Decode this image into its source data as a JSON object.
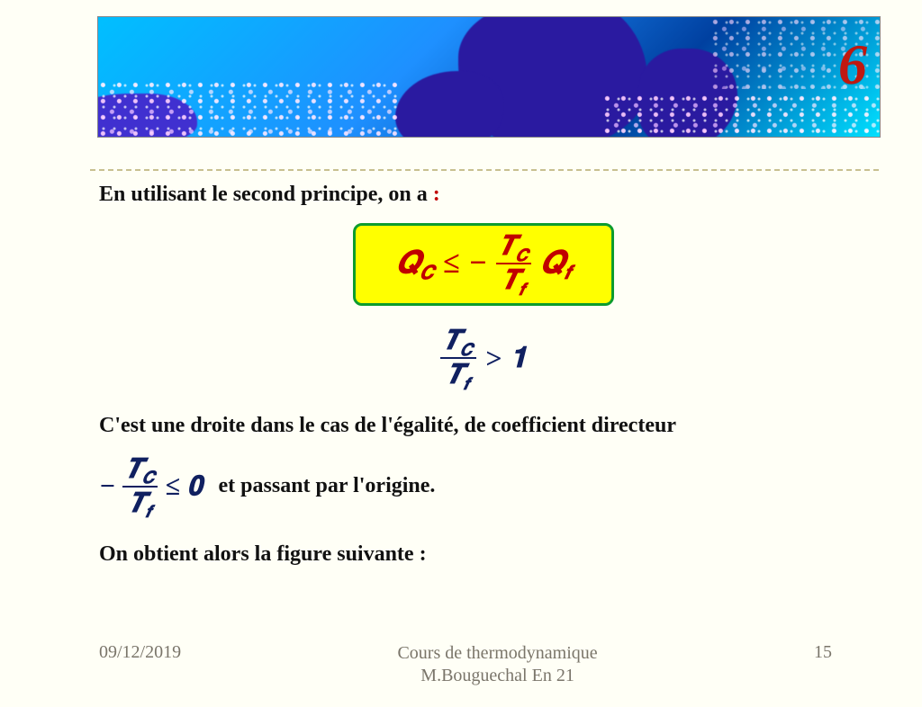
{
  "pageNumber": "6",
  "line1_prefix": "En utilisant le second principe, on a ",
  "line1_colon": ":",
  "eqBox": {
    "Q_C": "𝑸",
    "Q_C_sub": "𝑪",
    "le": "≤",
    "minus": "−",
    "T_C": "𝑻",
    "T_C_sub": "𝑪",
    "T_f": "𝑻",
    "T_f_sub": "𝒇",
    "Q_f": "𝑸",
    "Q_f_sub": "𝒇"
  },
  "eq2": {
    "T_C": "𝑻",
    "T_C_sub": "𝑪",
    "T_f": "𝑻",
    "T_f_sub": "𝒇",
    "gt": ">",
    "one": "𝟏"
  },
  "para1": "C'est une droite dans le cas de l'égalité,  de coefficient directeur",
  "eqInline": {
    "minus": "−",
    "T_C": "𝑻",
    "T_C_sub": "𝑪",
    "T_f": "𝑻",
    "T_f_sub": "𝒇",
    "le": "≤",
    "zero": "𝟎"
  },
  "para2_tail": "et  passant par l'origine.",
  "para3": "On obtient alors la figure suivante :",
  "footer": {
    "date": "09/12/2019",
    "title1": "Cours de thermodynamique",
    "title2": "M.Bouguechal  En 21",
    "slide": "15"
  },
  "colors": {
    "background": "#fffff6",
    "boxFill": "#ffff00",
    "boxBorder": "#0d9c2e",
    "eqRed": "#c00000",
    "eqNavy": "#102060",
    "footerText": "#7a756a"
  }
}
